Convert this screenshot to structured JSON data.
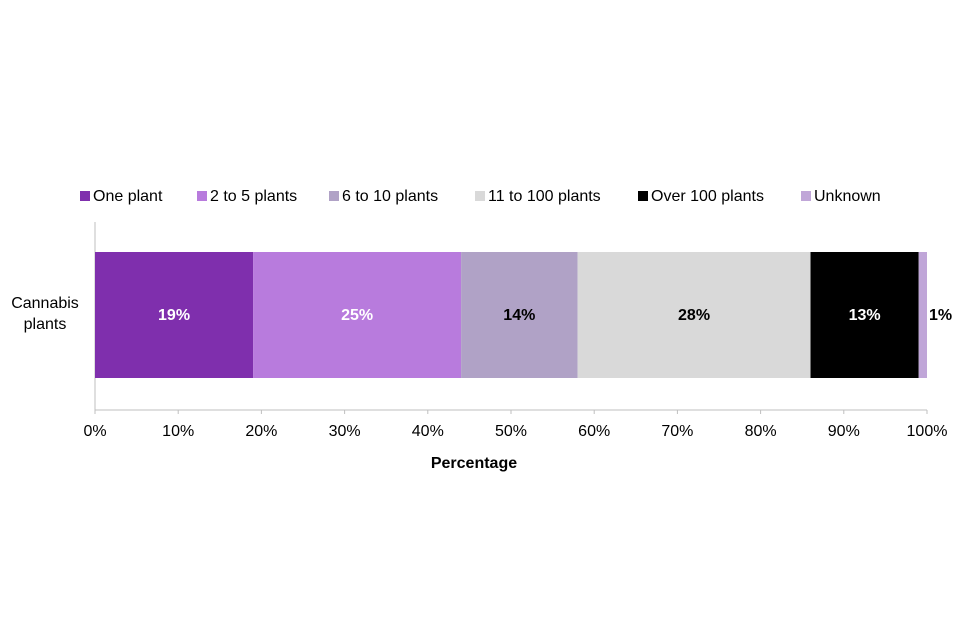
{
  "chart_data": {
    "type": "stacked-bar-horizontal",
    "categories": [
      "Cannabis plants"
    ],
    "x_label": "Percentage",
    "series": [
      {
        "name": "One plant",
        "color": "#7f2fad",
        "values": [
          19
        ],
        "value_labels": [
          "19%"
        ],
        "label_color": "#ffffff"
      },
      {
        "name": "2 to 5 plants",
        "color": "#b87bdd",
        "values": [
          25
        ],
        "value_labels": [
          "25%"
        ],
        "label_color": "#ffffff"
      },
      {
        "name": "6 to 10 plants",
        "color": "#b0a2c6",
        "values": [
          14
        ],
        "value_labels": [
          "14%"
        ],
        "label_color": "#000000"
      },
      {
        "name": "11 to 100 plants",
        "color": "#d9d9d9",
        "values": [
          28
        ],
        "value_labels": [
          "28%"
        ],
        "label_color": "#000000"
      },
      {
        "name": "Over 100 plants",
        "color": "#000000",
        "values": [
          13
        ],
        "value_labels": [
          "13%"
        ],
        "label_color": "#ffffff"
      },
      {
        "name": "Unknown",
        "color": "#c0a6d8",
        "values": [
          1
        ],
        "value_labels": [
          "1%"
        ],
        "label_color": "#000000"
      }
    ],
    "xlim": [
      0,
      100
    ],
    "xticks": [
      {
        "value": 0,
        "label": "0%"
      },
      {
        "value": 10,
        "label": "10%"
      },
      {
        "value": 20,
        "label": "20%"
      },
      {
        "value": 30,
        "label": "30%"
      },
      {
        "value": 40,
        "label": "40%"
      },
      {
        "value": 50,
        "label": "50%"
      },
      {
        "value": 60,
        "label": "60%"
      },
      {
        "value": 70,
        "label": "70%"
      },
      {
        "value": 80,
        "label": "80%"
      },
      {
        "value": 90,
        "label": "90%"
      },
      {
        "value": 100,
        "label": "100%"
      }
    ],
    "legend": "top"
  }
}
